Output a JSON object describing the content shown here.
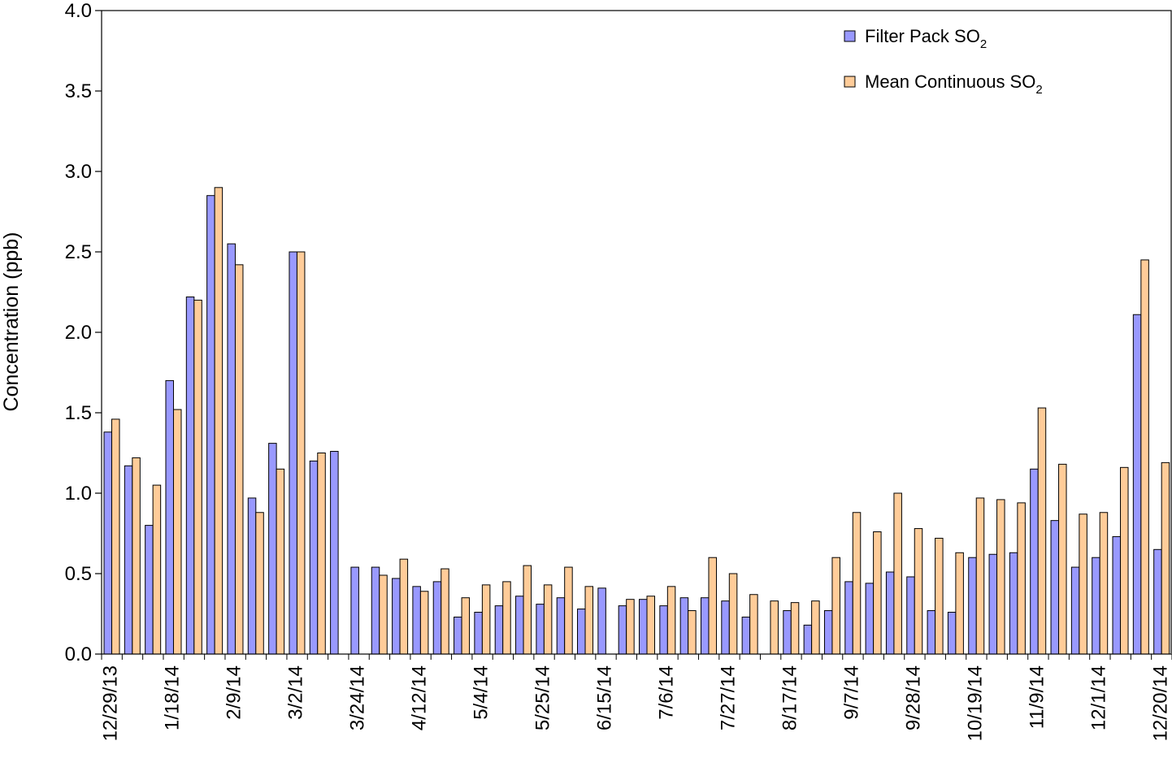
{
  "chart_data": {
    "type": "bar",
    "ylabel": "Concentration (ppb)",
    "ylim": [
      0,
      4.0
    ],
    "yticks": [
      "0.0",
      "0.5",
      "1.0",
      "1.5",
      "2.0",
      "2.5",
      "3.0",
      "3.5",
      "4.0"
    ],
    "xtick_labels": [
      "12/29/13",
      "1/18/14",
      "2/9/14",
      "3/2/14",
      "3/24/14",
      "4/12/14",
      "5/4/14",
      "5/25/14",
      "6/15/14",
      "7/6/14",
      "7/27/14",
      "8/17/14",
      "9/7/14",
      "9/28/14",
      "10/19/14",
      "11/9/14",
      "12/1/14",
      "12/20/14"
    ],
    "legend": {
      "position": "top-right",
      "entries": [
        {
          "name": "Filter Pack SO",
          "subscript": "2"
        },
        {
          "name": "Mean Continuous SO",
          "subscript": "2"
        }
      ]
    },
    "series": [
      {
        "name": "Filter Pack SO2",
        "color": "#9999FF",
        "values": [
          1.38,
          1.17,
          0.8,
          1.7,
          2.22,
          2.85,
          2.55,
          0.97,
          1.31,
          2.5,
          1.2,
          1.26,
          0.54,
          0.54,
          0.47,
          0.42,
          0.45,
          0.23,
          0.26,
          0.3,
          0.36,
          0.31,
          0.35,
          0.28,
          0.41,
          0.3,
          0.34,
          0.3,
          0.35,
          0.35,
          0.33,
          0.23,
          null,
          0.27,
          0.18,
          0.27,
          0.45,
          0.44,
          0.51,
          0.48,
          0.27,
          0.26,
          0.6,
          0.62,
          0.63,
          1.15,
          0.83,
          0.54,
          0.6,
          0.73,
          2.11,
          0.65
        ]
      },
      {
        "name": "Mean Continuous SO2",
        "color": "#FFCC99",
        "values": [
          1.46,
          1.22,
          1.05,
          1.52,
          2.2,
          2.9,
          2.42,
          0.88,
          1.15,
          2.5,
          1.25,
          null,
          null,
          0.49,
          0.59,
          0.39,
          0.53,
          0.35,
          0.43,
          0.45,
          0.55,
          0.43,
          0.54,
          0.42,
          null,
          0.34,
          0.36,
          0.42,
          0.27,
          0.6,
          0.5,
          0.37,
          0.33,
          0.32,
          0.33,
          0.6,
          0.88,
          0.76,
          1.0,
          0.78,
          0.72,
          0.63,
          0.97,
          0.96,
          0.94,
          1.53,
          1.18,
          0.87,
          0.88,
          1.16,
          2.45,
          1.19
        ]
      }
    ]
  }
}
